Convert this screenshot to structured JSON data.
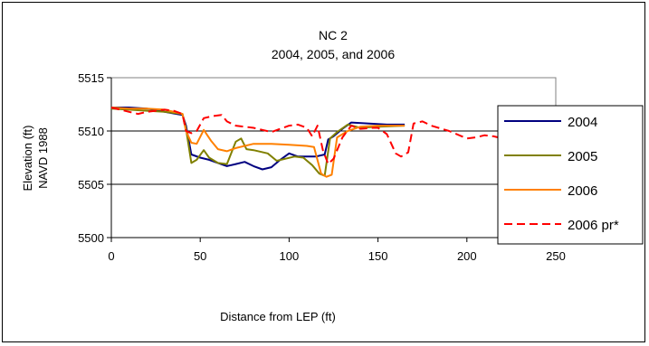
{
  "chart_data": {
    "type": "line",
    "title": "NC 2",
    "subtitle": "2004, 2005,  and 2006",
    "xlabel": "Distance from LEP (ft)",
    "ylabel": "Elevation (ft)",
    "ylabel2": "NAVD 1988",
    "xlim": [
      0,
      250
    ],
    "ylim": [
      5500,
      5515
    ],
    "xticks": [
      "0",
      "50",
      "100",
      "150",
      "200",
      "250"
    ],
    "yticks": [
      "5500",
      "5505",
      "5510",
      "5515"
    ],
    "grid": "horizontal",
    "legend_position": "right",
    "series": [
      {
        "name": "2004",
        "color": "#000080",
        "dash": "solid",
        "points": [
          [
            0,
            5512.2
          ],
          [
            10,
            5512.2
          ],
          [
            20,
            5512.1
          ],
          [
            30,
            5511.8
          ],
          [
            40,
            5511.5
          ],
          [
            42,
            5510.5
          ],
          [
            45,
            5507.8
          ],
          [
            50,
            5507.5
          ],
          [
            55,
            5507.3
          ],
          [
            60,
            5507.0
          ],
          [
            65,
            5506.7
          ],
          [
            70,
            5506.9
          ],
          [
            75,
            5507.1
          ],
          [
            80,
            5506.7
          ],
          [
            85,
            5506.4
          ],
          [
            90,
            5506.6
          ],
          [
            95,
            5507.3
          ],
          [
            100,
            5507.9
          ],
          [
            105,
            5507.6
          ],
          [
            110,
            5507.6
          ],
          [
            115,
            5507.6
          ],
          [
            120,
            5507.8
          ],
          [
            122,
            5509.2
          ],
          [
            125,
            5509.5
          ],
          [
            130,
            5510.2
          ],
          [
            135,
            5510.8
          ],
          [
            145,
            5510.7
          ],
          [
            155,
            5510.6
          ],
          [
            165,
            5510.6
          ]
        ]
      },
      {
        "name": "2005",
        "color": "#808000",
        "dash": "solid",
        "points": [
          [
            0,
            5512.1
          ],
          [
            10,
            5512.0
          ],
          [
            20,
            5511.9
          ],
          [
            30,
            5511.8
          ],
          [
            40,
            5511.6
          ],
          [
            42,
            5510.2
          ],
          [
            45,
            5507.0
          ],
          [
            48,
            5507.3
          ],
          [
            52,
            5508.2
          ],
          [
            55,
            5507.5
          ],
          [
            60,
            5507.0
          ],
          [
            65,
            5506.9
          ],
          [
            70,
            5509.0
          ],
          [
            73,
            5509.3
          ],
          [
            76,
            5508.3
          ],
          [
            80,
            5508.2
          ],
          [
            88,
            5507.9
          ],
          [
            93,
            5507.2
          ],
          [
            98,
            5507.4
          ],
          [
            103,
            5507.6
          ],
          [
            108,
            5507.5
          ],
          [
            113,
            5506.8
          ],
          [
            117,
            5506.0
          ],
          [
            120,
            5505.8
          ],
          [
            123,
            5509.3
          ],
          [
            127,
            5509.9
          ],
          [
            133,
            5510.6
          ],
          [
            140,
            5510.3
          ],
          [
            150,
            5510.4
          ],
          [
            165,
            5510.5
          ]
        ]
      },
      {
        "name": "2006",
        "color": "#ff8000",
        "dash": "solid",
        "points": [
          [
            0,
            5512.2
          ],
          [
            10,
            5512.1
          ],
          [
            20,
            5512.1
          ],
          [
            30,
            5512.0
          ],
          [
            40,
            5511.6
          ],
          [
            42,
            5510.0
          ],
          [
            45,
            5508.9
          ],
          [
            48,
            5508.8
          ],
          [
            52,
            5510.1
          ],
          [
            56,
            5509.1
          ],
          [
            60,
            5508.3
          ],
          [
            65,
            5508.1
          ],
          [
            70,
            5508.4
          ],
          [
            80,
            5508.8
          ],
          [
            90,
            5508.8
          ],
          [
            100,
            5508.7
          ],
          [
            110,
            5508.6
          ],
          [
            114,
            5508.5
          ],
          [
            118,
            5506.0
          ],
          [
            121,
            5505.7
          ],
          [
            124,
            5505.9
          ],
          [
            127,
            5509.4
          ],
          [
            133,
            5510.0
          ],
          [
            140,
            5510.4
          ],
          [
            150,
            5510.5
          ],
          [
            165,
            5510.5
          ]
        ]
      },
      {
        "name": "2006 pr*",
        "color": "#ff0000",
        "dash": "dashed",
        "points": [
          [
            0,
            5512.2
          ],
          [
            5,
            5512.0
          ],
          [
            10,
            5511.8
          ],
          [
            15,
            5511.6
          ],
          [
            20,
            5511.8
          ],
          [
            25,
            5511.9
          ],
          [
            30,
            5512.0
          ],
          [
            35,
            5511.9
          ],
          [
            40,
            5511.6
          ],
          [
            42,
            5510.0
          ],
          [
            45,
            5509.8
          ],
          [
            48,
            5510.0
          ],
          [
            52,
            5511.2
          ],
          [
            57,
            5511.4
          ],
          [
            62,
            5511.5
          ],
          [
            65,
            5510.9
          ],
          [
            70,
            5510.5
          ],
          [
            75,
            5510.4
          ],
          [
            80,
            5510.3
          ],
          [
            85,
            5510.1
          ],
          [
            90,
            5509.9
          ],
          [
            95,
            5510.2
          ],
          [
            100,
            5510.5
          ],
          [
            105,
            5510.6
          ],
          [
            110,
            5510.3
          ],
          [
            113,
            5509.5
          ],
          [
            116,
            5510.5
          ],
          [
            119,
            5508.2
          ],
          [
            122,
            5506.9
          ],
          [
            125,
            5507.4
          ],
          [
            130,
            5509.4
          ],
          [
            135,
            5510.5
          ],
          [
            140,
            5510.2
          ],
          [
            147,
            5510.3
          ],
          [
            150,
            5510.3
          ],
          [
            155,
            5509.7
          ],
          [
            160,
            5507.9
          ],
          [
            163,
            5507.6
          ],
          [
            167,
            5508.0
          ],
          [
            170,
            5510.7
          ],
          [
            175,
            5510.9
          ],
          [
            180,
            5510.5
          ],
          [
            190,
            5510.0
          ],
          [
            200,
            5509.3
          ],
          [
            205,
            5509.4
          ],
          [
            210,
            5509.6
          ],
          [
            215,
            5509.5
          ],
          [
            220,
            5509.3
          ],
          [
            225,
            5509.0
          ]
        ]
      }
    ]
  }
}
